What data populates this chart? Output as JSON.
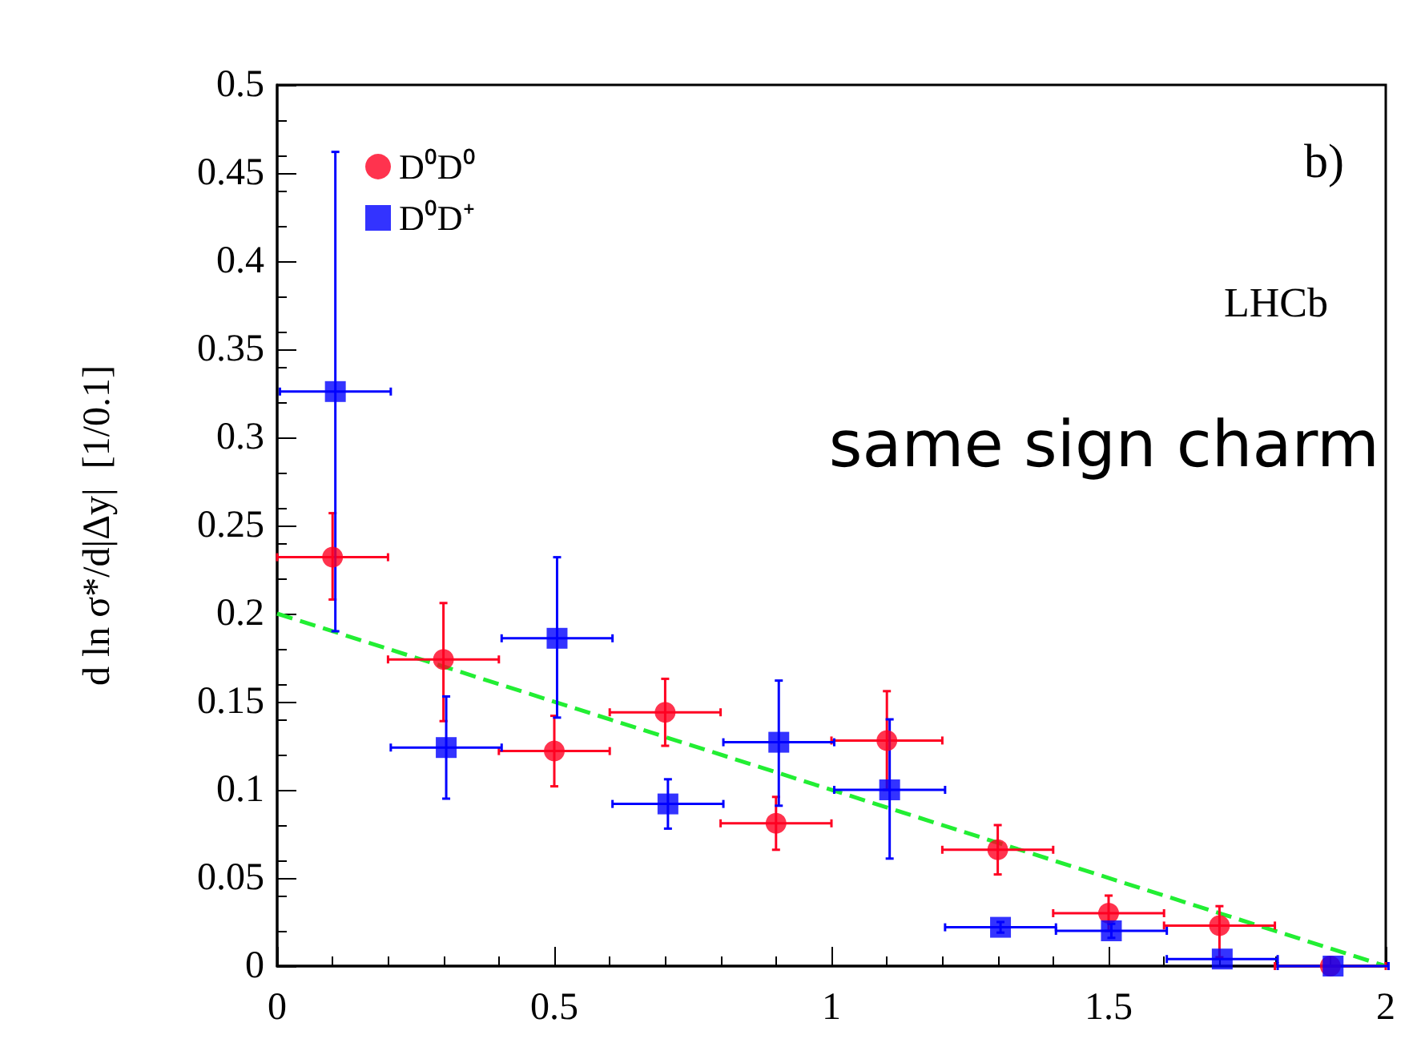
{
  "chart_data": {
    "type": "scatter",
    "ylabel": "d ln σ*/d|Δy|  [1/0.1]",
    "annotations": [
      "b)",
      "LHCb",
      "same sign charm"
    ],
    "series": [
      {
        "name": "D⁰D⁰",
        "color": "#ff0022",
        "marker": "circle",
        "x": [
          0.1,
          0.3,
          0.5,
          0.7,
          0.9,
          1.1,
          1.3,
          1.5,
          1.7,
          1.9
        ],
        "values": [
          0.232,
          0.174,
          0.122,
          0.144,
          0.081,
          0.128,
          0.066,
          0.03,
          0.023,
          0.0
        ],
        "errors": [
          [
            0.208,
            0.257
          ],
          [
            0.139,
            0.206
          ],
          [
            0.102,
            0.142
          ],
          [
            0.125,
            0.163
          ],
          [
            0.066,
            0.096
          ],
          [
            0.1,
            0.156
          ],
          [
            0.052,
            0.08
          ],
          [
            0.02,
            0.04
          ],
          [
            0.005,
            0.034
          ],
          null
        ],
        "xerrors": [
          0.1,
          0.1,
          0.1,
          0.1,
          0.1,
          0.1,
          0.1,
          0.1,
          0.1,
          0.1
        ]
      },
      {
        "name": "D⁰D⁺",
        "color": "#0000ff",
        "marker": "square",
        "x": [
          0.105,
          0.305,
          0.505,
          0.705,
          0.905,
          1.105,
          1.305,
          1.505,
          1.705,
          1.905
        ],
        "values": [
          0.326,
          0.124,
          0.186,
          0.092,
          0.127,
          0.1,
          0.022,
          0.02,
          0.004,
          0.0
        ],
        "errors": [
          [
            0.19,
            0.462
          ],
          [
            0.095,
            0.153
          ],
          [
            0.141,
            0.232
          ],
          [
            0.078,
            0.106
          ],
          [
            0.091,
            0.162
          ],
          [
            0.061,
            0.14
          ],
          [
            0.019,
            0.025
          ],
          [
            0.016,
            0.024
          ],
          null,
          null
        ],
        "xerrors": [
          0.1,
          0.1,
          0.1,
          0.1,
          0.1,
          0.1,
          0.1,
          0.1,
          0.1,
          0.1
        ]
      },
      {
        "type": "line",
        "color": "#22ee33",
        "line_style": "dashed",
        "marker": "none",
        "x": [
          0,
          2
        ],
        "values": [
          0.2,
          0
        ]
      }
    ],
    "xlim": [
      0,
      2
    ],
    "xticks": [
      0,
      0.5,
      1,
      1.5,
      2
    ],
    "ylim": [
      0,
      0.5
    ],
    "yticks": [
      0,
      0.05,
      0.1,
      0.15,
      0.2,
      0.25,
      0.3,
      0.35,
      0.4,
      0.45,
      0.5
    ],
    "grid": false,
    "legend": "top left"
  }
}
